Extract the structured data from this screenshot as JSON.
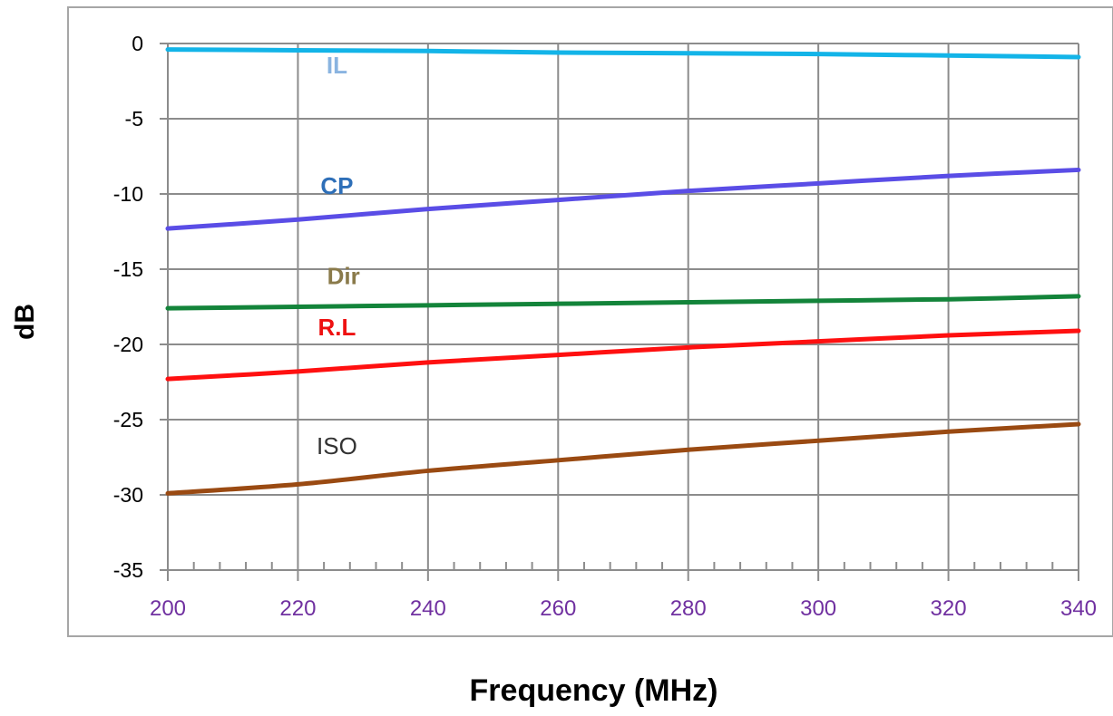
{
  "chart_data": {
    "type": "line",
    "title": "",
    "xlabel": "Frequency (MHz)",
    "ylabel": "dB",
    "xlim": [
      200,
      340
    ],
    "ylim": [
      -35,
      0
    ],
    "x_ticks": [
      200,
      220,
      240,
      260,
      280,
      300,
      320,
      340
    ],
    "y_ticks": [
      0,
      -5,
      -10,
      -15,
      -20,
      -25,
      -30,
      -35
    ],
    "x_minor_step": 4,
    "grid": true,
    "legend": "none",
    "x": [
      200,
      220,
      240,
      260,
      280,
      300,
      320,
      340
    ],
    "series": [
      {
        "name": "IL",
        "color": "#13b4e8",
        "label_color": "#8ab4e0",
        "values": [
          -0.4,
          -0.45,
          -0.5,
          -0.6,
          -0.65,
          -0.7,
          -0.8,
          -0.9
        ]
      },
      {
        "name": "CP",
        "color": "#5a4de6",
        "label_color": "#2e6fb8",
        "values": [
          -12.3,
          -11.7,
          -11.0,
          -10.4,
          -9.8,
          -9.3,
          -8.8,
          -8.4
        ]
      },
      {
        "name": "Dir",
        "color": "#13843a",
        "label_color": "#8a7a4a",
        "values": [
          -17.6,
          -17.5,
          -17.4,
          -17.3,
          -17.2,
          -17.1,
          -17.0,
          -16.8
        ]
      },
      {
        "name": "R.L",
        "color": "#ff1010",
        "label_color": "#ee1111",
        "values": [
          -22.3,
          -21.8,
          -21.2,
          -20.7,
          -20.2,
          -19.8,
          -19.4,
          -19.1
        ]
      },
      {
        "name": "ISO",
        "color": "#9a4a12",
        "label_color": "#333333",
        "values": [
          -29.9,
          -29.3,
          -28.4,
          -27.7,
          -27.0,
          -26.4,
          -25.8,
          -25.3
        ]
      }
    ],
    "series_labels": [
      {
        "series": "IL",
        "x": 226,
        "y": -2.0
      },
      {
        "series": "CP",
        "x": 226,
        "y": -10.0
      },
      {
        "series": "Dir",
        "x": 227,
        "y": -16.0
      },
      {
        "series": "R.L",
        "x": 226,
        "y": -19.4
      },
      {
        "series": "ISO",
        "x": 226,
        "y": -27.3
      }
    ]
  }
}
